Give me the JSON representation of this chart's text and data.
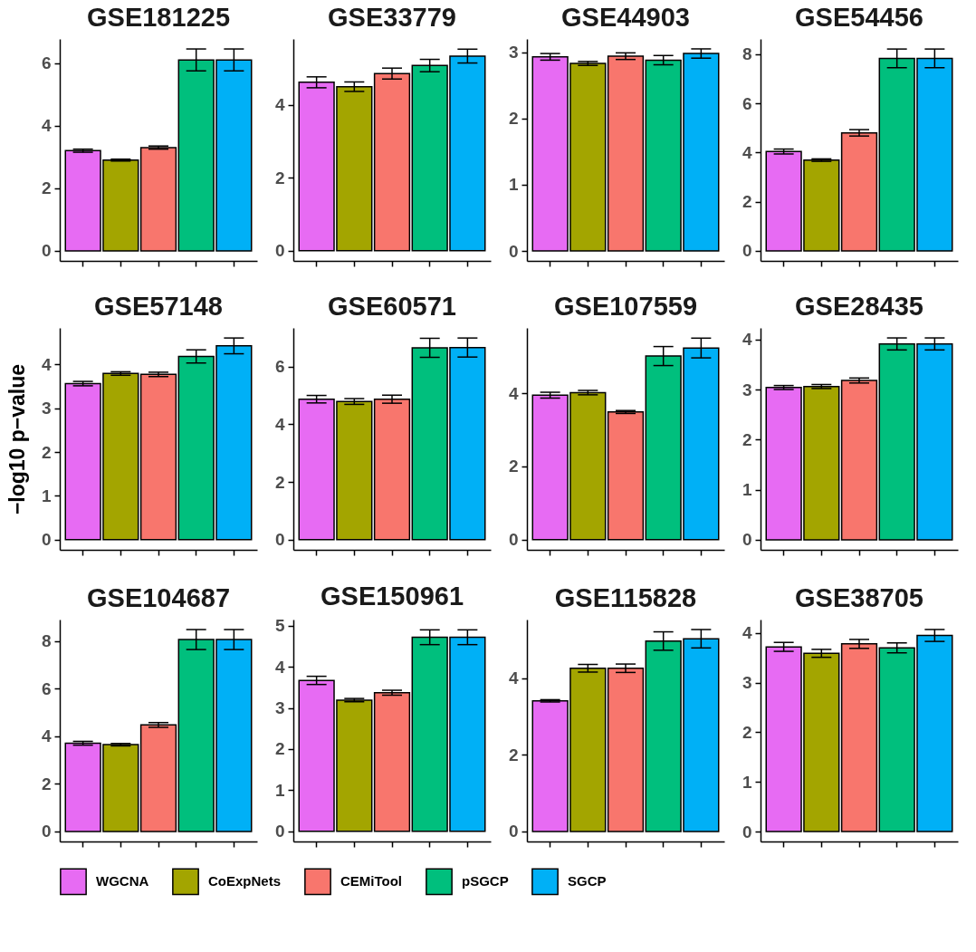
{
  "chart_data": [
    {
      "type": "bar",
      "title": "GSE181225",
      "categories": [
        null,
        null,
        null,
        null,
        null
      ],
      "ylim": [
        -0.32,
        6.77
      ],
      "yticks": [
        0,
        2,
        4,
        6
      ],
      "legend": "bottom",
      "series": [
        {
          "name": "WGCNA",
          "color": "#e76bf3",
          "values": [
            3.2,
            null,
            null,
            null,
            null
          ],
          "errors": [
            0.05,
            null,
            null,
            null,
            null
          ]
        },
        {
          "name": "CoExpNets",
          "color": "#a3a500",
          "values": [
            null,
            2.9,
            null,
            null,
            null
          ],
          "errors": [
            null,
            0.03,
            null,
            null,
            null
          ]
        },
        {
          "name": "CEMiTool",
          "color": "#f8766d",
          "values": [
            null,
            null,
            3.3,
            null,
            null
          ],
          "errors": [
            null,
            null,
            0.05,
            null,
            null
          ]
        },
        {
          "name": "pSGCP",
          "color": "#00bf7d",
          "values": [
            null,
            null,
            null,
            6.1,
            null
          ],
          "errors": [
            null,
            null,
            null,
            0.35,
            null
          ]
        },
        {
          "name": "SGCP",
          "color": "#00b0f6",
          "values": [
            null,
            null,
            null,
            null,
            6.1
          ],
          "errors": [
            null,
            null,
            null,
            null,
            0.35
          ]
        }
      ]
    },
    {
      "type": "bar",
      "title": "GSE33779",
      "categories": [
        null,
        null,
        null,
        null,
        null
      ],
      "ylim": [
        -0.28,
        5.81
      ],
      "yticks": [
        0,
        2,
        4
      ],
      "series": [
        {
          "name": "WGCNA",
          "color": "#e76bf3",
          "values": [
            4.62,
            null,
            null,
            null,
            null
          ],
          "errors": [
            0.15,
            null,
            null,
            null,
            null
          ]
        },
        {
          "name": "CoExpNets",
          "color": "#a3a500",
          "values": [
            null,
            4.5,
            null,
            null,
            null
          ],
          "errors": [
            null,
            0.13,
            null,
            null,
            null
          ]
        },
        {
          "name": "CEMiTool",
          "color": "#f8766d",
          "values": [
            null,
            null,
            4.86,
            null,
            null
          ],
          "errors": [
            null,
            null,
            0.15,
            null,
            null
          ]
        },
        {
          "name": "pSGCP",
          "color": "#00bf7d",
          "values": [
            null,
            null,
            null,
            5.08,
            null
          ],
          "errors": [
            null,
            null,
            null,
            0.17,
            null
          ]
        },
        {
          "name": "SGCP",
          "color": "#00b0f6",
          "values": [
            null,
            null,
            null,
            null,
            5.34
          ],
          "errors": [
            null,
            null,
            null,
            null,
            0.19
          ]
        }
      ]
    },
    {
      "type": "bar",
      "title": "GSE44903",
      "categories": [
        null,
        null,
        null,
        null,
        null
      ],
      "ylim": [
        -0.15,
        3.2
      ],
      "yticks": [
        0,
        1,
        2,
        3
      ],
      "series": [
        {
          "name": "WGCNA",
          "color": "#e76bf3",
          "values": [
            2.93,
            null,
            null,
            null,
            null
          ],
          "errors": [
            0.05,
            null,
            null,
            null,
            null
          ]
        },
        {
          "name": "CoExpNets",
          "color": "#a3a500",
          "values": [
            null,
            2.83,
            null,
            null,
            null
          ],
          "errors": [
            null,
            0.03,
            null,
            null,
            null
          ]
        },
        {
          "name": "CEMiTool",
          "color": "#f8766d",
          "values": [
            null,
            null,
            2.94,
            null,
            null
          ],
          "errors": [
            null,
            null,
            0.05,
            null,
            null
          ]
        },
        {
          "name": "pSGCP",
          "color": "#00bf7d",
          "values": [
            null,
            null,
            null,
            2.88,
            null
          ],
          "errors": [
            null,
            null,
            null,
            0.07,
            null
          ]
        },
        {
          "name": "SGCP",
          "color": "#00b0f6",
          "values": [
            null,
            null,
            null,
            null,
            2.98
          ],
          "errors": [
            null,
            null,
            null,
            null,
            0.07
          ]
        }
      ]
    },
    {
      "type": "bar",
      "title": "GSE54456",
      "categories": [
        null,
        null,
        null,
        null,
        null
      ],
      "ylim": [
        -0.41,
        8.62
      ],
      "yticks": [
        0,
        2,
        4,
        6,
        8
      ],
      "series": [
        {
          "name": "WGCNA",
          "color": "#e76bf3",
          "values": [
            4.04,
            null,
            null,
            null,
            null
          ],
          "errors": [
            0.1,
            null,
            null,
            null,
            null
          ]
        },
        {
          "name": "CoExpNets",
          "color": "#a3a500",
          "values": [
            null,
            3.69,
            null,
            null,
            null
          ],
          "errors": [
            null,
            0.05,
            null,
            null,
            null
          ]
        },
        {
          "name": "CEMiTool",
          "color": "#f8766d",
          "values": [
            null,
            null,
            4.8,
            null,
            null
          ],
          "errors": [
            null,
            null,
            0.13,
            null,
            null
          ]
        },
        {
          "name": "pSGCP",
          "color": "#00bf7d",
          "values": [
            null,
            null,
            null,
            7.83,
            null
          ],
          "errors": [
            null,
            null,
            null,
            0.38,
            null
          ]
        },
        {
          "name": "SGCP",
          "color": "#00b0f6",
          "values": [
            null,
            null,
            null,
            null,
            7.83
          ],
          "errors": [
            null,
            null,
            null,
            null,
            0.38
          ]
        }
      ]
    },
    {
      "type": "bar",
      "title": "GSE57148",
      "ylabel": "−log10 p−value",
      "categories": [
        null,
        null,
        null,
        null,
        null
      ],
      "ylim": [
        -0.23,
        4.83
      ],
      "yticks": [
        0,
        1,
        2,
        3,
        4
      ],
      "series": [
        {
          "name": "WGCNA",
          "color": "#e76bf3",
          "values": [
            3.56,
            null,
            null,
            null,
            null
          ],
          "errors": [
            0.05,
            null,
            null,
            null,
            null
          ]
        },
        {
          "name": "CoExpNets",
          "color": "#a3a500",
          "values": [
            null,
            3.79,
            null,
            null,
            null
          ],
          "errors": [
            null,
            0.04,
            null,
            null,
            null
          ]
        },
        {
          "name": "CEMiTool",
          "color": "#f8766d",
          "values": [
            null,
            null,
            3.77,
            null,
            null
          ],
          "errors": [
            null,
            null,
            0.05,
            null,
            null
          ]
        },
        {
          "name": "pSGCP",
          "color": "#00bf7d",
          "values": [
            null,
            null,
            null,
            4.18,
            null
          ],
          "errors": [
            null,
            null,
            null,
            0.15,
            null
          ]
        },
        {
          "name": "SGCP",
          "color": "#00b0f6",
          "values": [
            null,
            null,
            null,
            null,
            4.42
          ],
          "errors": [
            null,
            null,
            null,
            null,
            0.18
          ]
        }
      ]
    },
    {
      "type": "bar",
      "title": "GSE60571",
      "categories": [
        null,
        null,
        null,
        null,
        null
      ],
      "ylim": [
        -0.35,
        7.34
      ],
      "yticks": [
        0,
        2,
        4,
        6
      ],
      "series": [
        {
          "name": "WGCNA",
          "color": "#e76bf3",
          "values": [
            4.87,
            null,
            null,
            null,
            null
          ],
          "errors": [
            0.13,
            null,
            null,
            null,
            null
          ]
        },
        {
          "name": "CoExpNets",
          "color": "#a3a500",
          "values": [
            null,
            4.79,
            null,
            null,
            null
          ],
          "errors": [
            null,
            0.1,
            null,
            null,
            null
          ]
        },
        {
          "name": "CEMiTool",
          "color": "#f8766d",
          "values": [
            null,
            null,
            4.87,
            null,
            null
          ],
          "errors": [
            null,
            null,
            0.14,
            null,
            null
          ]
        },
        {
          "name": "pSGCP",
          "color": "#00bf7d",
          "values": [
            null,
            null,
            null,
            6.65,
            null
          ],
          "errors": [
            null,
            null,
            null,
            0.33,
            null
          ]
        },
        {
          "name": "SGCP",
          "color": "#00b0f6",
          "values": [
            null,
            null,
            null,
            null,
            6.66
          ],
          "errors": [
            null,
            null,
            null,
            null,
            0.33
          ]
        }
      ]
    },
    {
      "type": "bar",
      "title": "GSE107559",
      "categories": [
        null,
        null,
        null,
        null,
        null
      ],
      "ylim": [
        -0.28,
        5.79
      ],
      "yticks": [
        0,
        2,
        4
      ],
      "series": [
        {
          "name": "WGCNA",
          "color": "#e76bf3",
          "values": [
            3.95,
            null,
            null,
            null,
            null
          ],
          "errors": [
            0.08,
            null,
            null,
            null,
            null
          ]
        },
        {
          "name": "CoExpNets",
          "color": "#a3a500",
          "values": [
            null,
            4.02,
            null,
            null,
            null
          ],
          "errors": [
            null,
            0.06,
            null,
            null,
            null
          ]
        },
        {
          "name": "CEMiTool",
          "color": "#f8766d",
          "values": [
            null,
            null,
            3.49,
            null,
            null
          ],
          "errors": [
            null,
            null,
            0.04,
            null,
            null
          ]
        },
        {
          "name": "pSGCP",
          "color": "#00bf7d",
          "values": [
            null,
            null,
            null,
            5.02,
            null
          ],
          "errors": [
            null,
            null,
            null,
            0.26,
            null
          ]
        },
        {
          "name": "SGCP",
          "color": "#00b0f6",
          "values": [
            null,
            null,
            null,
            null,
            5.24
          ],
          "errors": [
            null,
            null,
            null,
            null,
            0.27
          ]
        }
      ]
    },
    {
      "type": "bar",
      "title": "GSE28435",
      "categories": [
        null,
        null,
        null,
        null,
        null
      ],
      "ylim": [
        -0.2,
        4.23
      ],
      "yticks": [
        0,
        1,
        2,
        3,
        4
      ],
      "series": [
        {
          "name": "WGCNA",
          "color": "#e76bf3",
          "values": [
            3.04,
            null,
            null,
            null,
            null
          ],
          "errors": [
            0.04,
            null,
            null,
            null,
            null
          ]
        },
        {
          "name": "CoExpNets",
          "color": "#a3a500",
          "values": [
            null,
            3.06,
            null,
            null,
            null
          ],
          "errors": [
            null,
            0.04,
            null,
            null,
            null
          ]
        },
        {
          "name": "CEMiTool",
          "color": "#f8766d",
          "values": [
            null,
            null,
            3.18,
            null,
            null
          ],
          "errors": [
            null,
            null,
            0.05,
            null,
            null
          ]
        },
        {
          "name": "pSGCP",
          "color": "#00bf7d",
          "values": [
            null,
            null,
            null,
            3.91,
            null
          ],
          "errors": [
            null,
            null,
            null,
            0.12,
            null
          ]
        },
        {
          "name": "SGCP",
          "color": "#00b0f6",
          "values": [
            null,
            null,
            null,
            null,
            3.91
          ],
          "errors": [
            null,
            null,
            null,
            null,
            0.12
          ]
        }
      ]
    },
    {
      "type": "bar",
      "title": "GSE104687",
      "categories": [
        null,
        null,
        null,
        null,
        null
      ],
      "ylim": [
        -0.42,
        8.91
      ],
      "yticks": [
        0,
        2,
        4,
        6,
        8
      ],
      "series": [
        {
          "name": "WGCNA",
          "color": "#e76bf3",
          "values": [
            3.71,
            null,
            null,
            null,
            null
          ],
          "errors": [
            0.08,
            null,
            null,
            null,
            null
          ]
        },
        {
          "name": "CoExpNets",
          "color": "#a3a500",
          "values": [
            null,
            3.65,
            null,
            null,
            null
          ],
          "errors": [
            null,
            0.05,
            null,
            null,
            null
          ]
        },
        {
          "name": "CEMiTool",
          "color": "#f8766d",
          "values": [
            null,
            null,
            4.48,
            null,
            null
          ],
          "errors": [
            null,
            null,
            0.1,
            null,
            null
          ]
        },
        {
          "name": "pSGCP",
          "color": "#00bf7d",
          "values": [
            null,
            null,
            null,
            8.07,
            null
          ],
          "errors": [
            null,
            null,
            null,
            0.42,
            null
          ]
        },
        {
          "name": "SGCP",
          "color": "#00b0f6",
          "values": [
            null,
            null,
            null,
            null,
            8.07
          ],
          "errors": [
            null,
            null,
            null,
            null,
            0.42
          ]
        }
      ]
    },
    {
      "type": "bar",
      "title": "GSE150961",
      "categories": [
        null,
        null,
        null,
        null,
        null
      ],
      "ylim": [
        -0.25,
        5.15
      ],
      "yticks": [
        0,
        1,
        2,
        3,
        4,
        5
      ],
      "series": [
        {
          "name": "WGCNA",
          "color": "#e76bf3",
          "values": [
            3.67,
            null,
            null,
            null,
            null
          ],
          "errors": [
            0.1,
            null,
            null,
            null,
            null
          ]
        },
        {
          "name": "CoExpNets",
          "color": "#a3a500",
          "values": [
            null,
            3.19,
            null,
            null,
            null
          ],
          "errors": [
            null,
            0.04,
            null,
            null,
            null
          ]
        },
        {
          "name": "CEMiTool",
          "color": "#f8766d",
          "values": [
            null,
            null,
            3.37,
            null,
            null
          ],
          "errors": [
            null,
            null,
            0.06,
            null,
            null
          ]
        },
        {
          "name": "pSGCP",
          "color": "#00bf7d",
          "values": [
            null,
            null,
            null,
            4.72,
            null
          ],
          "errors": [
            null,
            null,
            null,
            0.18,
            null
          ]
        },
        {
          "name": "SGCP",
          "color": "#00b0f6",
          "values": [
            null,
            null,
            null,
            null,
            4.72
          ],
          "errors": [
            null,
            null,
            null,
            null,
            0.18
          ]
        }
      ]
    },
    {
      "type": "bar",
      "title": "GSE115828",
      "categories": [
        null,
        null,
        null,
        null,
        null
      ],
      "ylim": [
        -0.26,
        5.53
      ],
      "yticks": [
        0,
        2,
        4
      ],
      "series": [
        {
          "name": "WGCNA",
          "color": "#e76bf3",
          "values": [
            3.41,
            null,
            null,
            null,
            null
          ],
          "errors": [
            0.03,
            null,
            null,
            null,
            null
          ]
        },
        {
          "name": "CoExpNets",
          "color": "#a3a500",
          "values": [
            null,
            4.26,
            null,
            null,
            null
          ],
          "errors": [
            null,
            0.1,
            null,
            null,
            null
          ]
        },
        {
          "name": "CEMiTool",
          "color": "#f8766d",
          "values": [
            null,
            null,
            4.26,
            null,
            null
          ],
          "errors": [
            null,
            null,
            0.11,
            null,
            null
          ]
        },
        {
          "name": "pSGCP",
          "color": "#00bf7d",
          "values": [
            null,
            null,
            null,
            4.97,
            null
          ],
          "errors": [
            null,
            null,
            null,
            0.24,
            null
          ]
        },
        {
          "name": "SGCP",
          "color": "#00b0f6",
          "values": [
            null,
            null,
            null,
            null,
            5.03
          ],
          "errors": [
            null,
            null,
            null,
            null,
            0.24
          ]
        }
      ]
    },
    {
      "type": "bar",
      "title": "GSE38705",
      "categories": [
        null,
        null,
        null,
        null,
        null
      ],
      "ylim": [
        -0.2,
        4.27
      ],
      "yticks": [
        0,
        1,
        2,
        3,
        4
      ],
      "series": [
        {
          "name": "WGCNA",
          "color": "#e76bf3",
          "values": [
            3.72,
            null,
            null,
            null,
            null
          ],
          "errors": [
            0.09,
            null,
            null,
            null,
            null
          ]
        },
        {
          "name": "CoExpNets",
          "color": "#a3a500",
          "values": [
            null,
            3.59,
            null,
            null,
            null
          ],
          "errors": [
            null,
            0.08,
            null,
            null,
            null
          ]
        },
        {
          "name": "CEMiTool",
          "color": "#f8766d",
          "values": [
            null,
            null,
            3.78,
            null,
            null
          ],
          "errors": [
            null,
            null,
            0.09,
            null,
            null
          ]
        },
        {
          "name": "pSGCP",
          "color": "#00bf7d",
          "values": [
            null,
            null,
            null,
            3.7,
            null
          ],
          "errors": [
            null,
            null,
            null,
            0.1,
            null
          ]
        },
        {
          "name": "SGCP",
          "color": "#00b0f6",
          "values": [
            null,
            null,
            null,
            null,
            3.95
          ],
          "errors": [
            null,
            null,
            null,
            null,
            0.12
          ]
        }
      ]
    }
  ]
}
